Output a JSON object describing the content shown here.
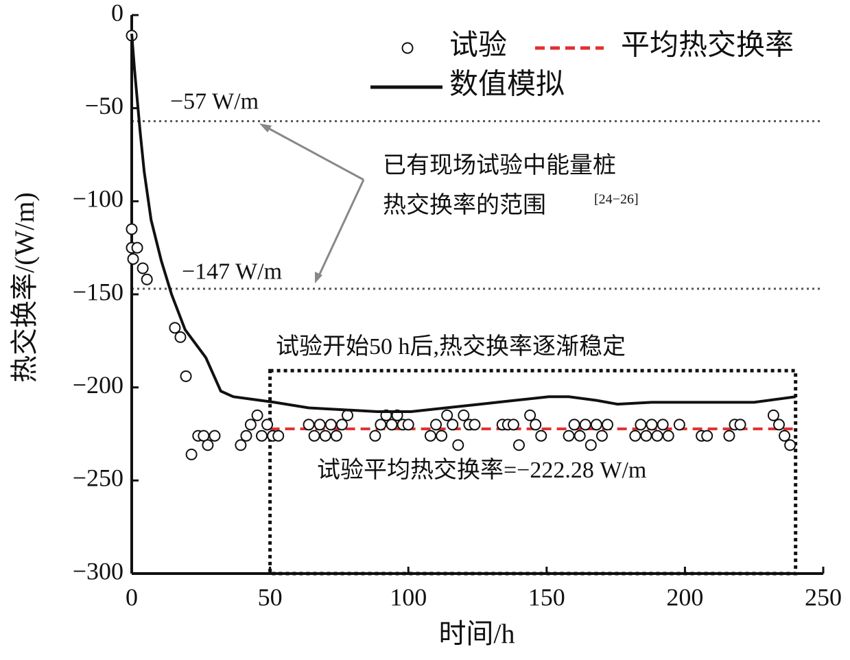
{
  "chart_data": {
    "type": "scatter-line",
    "xlabel": "时间/h",
    "ylabel": "热交换率/(W/m)",
    "xlim": [
      0,
      250
    ],
    "ylim": [
      -300,
      0
    ],
    "xticks": [
      0,
      50,
      100,
      150,
      200,
      250
    ],
    "yticks": [
      0,
      {
        "value": -50,
        "label": "−50"
      },
      {
        "value": -100,
        "label": "−100"
      },
      {
        "value": -150,
        "label": "−150"
      },
      {
        "value": -200,
        "label": "−200"
      },
      {
        "value": -250,
        "label": "−250"
      },
      {
        "value": -300,
        "label": "−300"
      }
    ],
    "series": [
      {
        "name": "试验",
        "kind": "scatter",
        "color": "#111111",
        "x": [
          0,
          0,
          0,
          0.5,
          2,
          4,
          5.5,
          15.6,
          17.6,
          19.6,
          21.6,
          24,
          26,
          27.5,
          30,
          39.4,
          41.4,
          43,
          45.4,
          47,
          49,
          51,
          53,
          64,
          66,
          68,
          70,
          72,
          74,
          76,
          78,
          88,
          90,
          92,
          94,
          96,
          98,
          100,
          108,
          110,
          112,
          114,
          116,
          118,
          120,
          122,
          124,
          134,
          136,
          138,
          140,
          144,
          146,
          148,
          158,
          160,
          162,
          164,
          166,
          168,
          170,
          172,
          182,
          184,
          186,
          188,
          190,
          192,
          194,
          198,
          206,
          208,
          216,
          218,
          220,
          232,
          234,
          236,
          238
        ],
        "values": [
          -11,
          -115,
          -125,
          -131,
          -125,
          -136,
          -142,
          -168,
          -173,
          -194,
          -236,
          -226,
          -226,
          -231,
          -226,
          -231,
          -226,
          -220,
          -215,
          -226,
          -220,
          -226,
          -226,
          -220,
          -226,
          -220,
          -226,
          -220,
          -226,
          -220,
          -215,
          -226,
          -220,
          -215,
          -220,
          -215,
          -220,
          -220,
          -226,
          -220,
          -226,
          -215,
          -220,
          -231,
          -215,
          -220,
          -220,
          -220,
          -220,
          -220,
          -231,
          -215,
          -220,
          -226,
          -226,
          -220,
          -226,
          -220,
          -231,
          -220,
          -226,
          -220,
          -226,
          -220,
          -226,
          -220,
          -226,
          -220,
          -226,
          -220,
          -226,
          -226,
          -226,
          -220,
          -220,
          -215,
          -220,
          -226,
          -231
        ]
      },
      {
        "name": "数值模拟",
        "kind": "line",
        "color": "#111111",
        "x": [
          0,
          1,
          3,
          4.5,
          7,
          10.7,
          14.4,
          19.3,
          26.8,
          32.2,
          36.7,
          51.6,
          64,
          76.4,
          88.8,
          101,
          113.6,
          126,
          138.4,
          150.8,
          158,
          168.1,
          175.6,
          188,
          200.4,
          212.8,
          225,
          240
        ],
        "values": [
          -10,
          -29,
          -62,
          -84,
          -110,
          -132,
          -150,
          -169,
          -184,
          -202,
          -205,
          -208,
          -211,
          -212,
          -213,
          -213,
          -211,
          -209,
          -207,
          -205,
          -205,
          -207,
          -209,
          -208,
          -208,
          -208,
          -208,
          -205
        ]
      }
    ],
    "mean_line": {
      "name": "平均热交换率",
      "value": -222.28,
      "xlim": [
        50,
        240
      ],
      "label": "试验平均热交换率=−222.28 W/m",
      "color": "#e03030"
    },
    "reference_lines": [
      {
        "value": -57,
        "label": "−57 W/m"
      },
      {
        "value": -147,
        "label": "−147 W/m"
      }
    ],
    "annotation": [
      "已有现场试验中能量桩",
      "热交换率的范围",
      "[24−26]"
    ],
    "box": {
      "x": [
        50,
        240
      ],
      "y": [
        -191,
        -300
      ],
      "label": "试验开始50 h后,热交换率逐渐稳定"
    }
  }
}
